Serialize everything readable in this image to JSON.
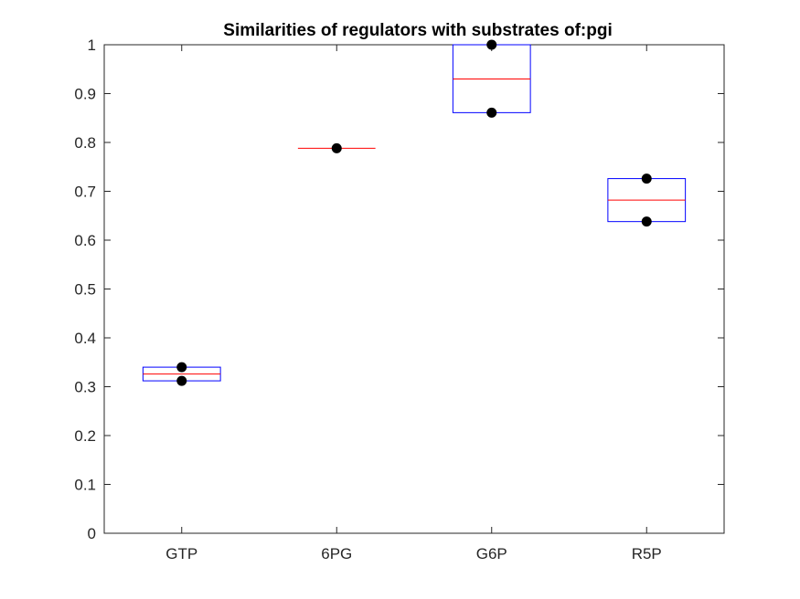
{
  "chart_data": {
    "type": "box",
    "title": "Similarities of regulators with substrates of:pgi",
    "xlabel": "",
    "ylabel": "",
    "ylim": [
      0,
      1
    ],
    "yticks": [
      0,
      0.1,
      0.2,
      0.3,
      0.4,
      0.5,
      0.6,
      0.7,
      0.8,
      0.9,
      1
    ],
    "ytick_labels": [
      "0",
      "0.1",
      "0.2",
      "0.3",
      "0.4",
      "0.5",
      "0.6",
      "0.7",
      "0.8",
      "0.9",
      "1"
    ],
    "categories": [
      "GTP",
      "6PG",
      "G6P",
      "R5P"
    ],
    "boxes": [
      {
        "category": "GTP",
        "q1": 0.312,
        "median": 0.326,
        "q3": 0.34
      },
      {
        "category": "6PG",
        "q1": 0.788,
        "median": 0.788,
        "q3": 0.788
      },
      {
        "category": "G6P",
        "q1": 0.861,
        "median": 0.93,
        "q3": 1.0
      },
      {
        "category": "R5P",
        "q1": 0.638,
        "median": 0.682,
        "q3": 0.726
      }
    ],
    "points": [
      {
        "category": "GTP",
        "values": [
          0.34,
          0.312
        ]
      },
      {
        "category": "6PG",
        "values": [
          0.788
        ]
      },
      {
        "category": "G6P",
        "values": [
          1.0,
          0.861
        ]
      },
      {
        "category": "R5P",
        "values": [
          0.726,
          0.638
        ]
      }
    ],
    "grid": false,
    "colors": {
      "box": "#0000ff",
      "median": "#ff0000",
      "points": "#000000",
      "axis": "#262626"
    }
  }
}
